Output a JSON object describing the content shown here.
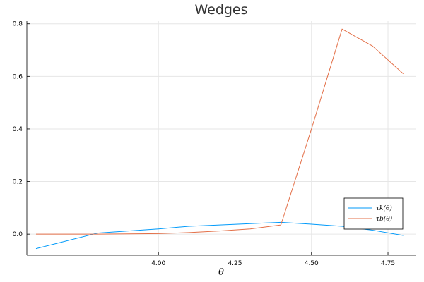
{
  "chart_data": {
    "type": "line",
    "title": "Wedges",
    "xlabel": "θ",
    "ylabel": "",
    "xlim": [
      3.57,
      4.84
    ],
    "ylim": [
      -0.08,
      0.81
    ],
    "xticks": [
      4.0,
      4.25,
      4.5,
      4.75
    ],
    "xtick_labels": [
      "4.00",
      "4.25",
      "4.50",
      "4.75"
    ],
    "yticks": [
      0.0,
      0.2,
      0.4,
      0.6,
      0.8
    ],
    "ytick_labels": [
      "0.0",
      "0.2",
      "0.4",
      "0.6",
      "0.8"
    ],
    "grid": true,
    "legend_position": "bottom-right",
    "series": [
      {
        "name": "τk(θ)",
        "color": "#009AFA",
        "x": [
          3.6,
          3.8,
          4.0,
          4.1,
          4.2,
          4.3,
          4.4,
          4.5,
          4.6,
          4.7,
          4.8
        ],
        "y": [
          -0.055,
          0.004,
          0.02,
          0.03,
          0.035,
          0.04,
          0.045,
          0.038,
          0.03,
          0.015,
          -0.005
        ]
      },
      {
        "name": "τb(θ)",
        "color": "#E36F47",
        "x": [
          3.6,
          3.8,
          4.0,
          4.1,
          4.2,
          4.3,
          4.4,
          4.5,
          4.6,
          4.7,
          4.8
        ],
        "y": [
          0.0,
          0.0,
          0.002,
          0.006,
          0.012,
          0.02,
          0.035,
          0.4,
          0.78,
          0.715,
          0.61
        ]
      }
    ]
  }
}
